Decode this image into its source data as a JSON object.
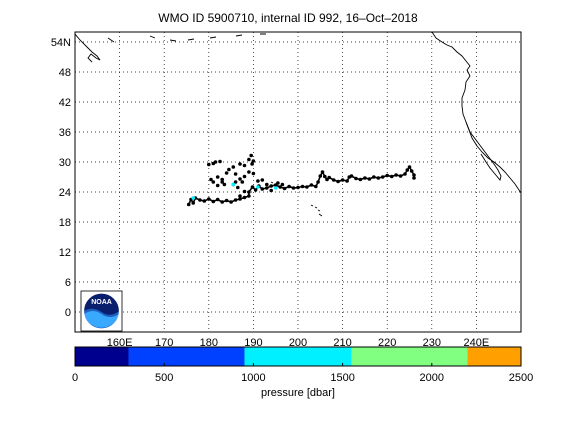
{
  "title": "WMO ID 5900710, internal ID 992, 16–Oct–2018",
  "map": {
    "lon_range": [
      150,
      250
    ],
    "lat_range": [
      -4,
      56
    ],
    "lat_ticks": [
      {
        "v": 54,
        "label": "54N"
      },
      {
        "v": 48,
        "label": "48"
      },
      {
        "v": 42,
        "label": "42"
      },
      {
        "v": 36,
        "label": "36"
      },
      {
        "v": 30,
        "label": "30"
      },
      {
        "v": 24,
        "label": "24"
      },
      {
        "v": 18,
        "label": "18"
      },
      {
        "v": 12,
        "label": "12"
      },
      {
        "v": 6,
        "label": "6"
      },
      {
        "v": 0,
        "label": "0"
      }
    ],
    "lon_ticks": [
      {
        "v": 160,
        "label": "160E"
      },
      {
        "v": 170,
        "label": "170"
      },
      {
        "v": 180,
        "label": "180"
      },
      {
        "v": 190,
        "label": "190"
      },
      {
        "v": 200,
        "label": "200"
      },
      {
        "v": 210,
        "label": "210"
      },
      {
        "v": 220,
        "label": "220"
      },
      {
        "v": 230,
        "label": "230"
      },
      {
        "v": 240,
        "label": "240E"
      }
    ],
    "grid": true,
    "float_color": "#000000",
    "logo_text": "NOAA"
  },
  "colorbar": {
    "label": "pressure [dbar]",
    "ticks": [
      {
        "v": 0,
        "label": "0"
      },
      {
        "v": 500,
        "label": "500"
      },
      {
        "v": 1000,
        "label": "1000"
      },
      {
        "v": 1500,
        "label": "1500"
      },
      {
        "v": 2000,
        "label": "2000"
      },
      {
        "v": 2500,
        "label": "2500"
      }
    ],
    "segments": [
      {
        "from": 0,
        "to": 300,
        "color": "#00008f"
      },
      {
        "from": 300,
        "to": 950,
        "color": "#0040ff"
      },
      {
        "from": 950,
        "to": 1550,
        "color": "#00f0ff"
      },
      {
        "from": 1550,
        "to": 2200,
        "color": "#80ff80"
      },
      {
        "from": 2200,
        "to": 2500,
        "color": "#ffa000"
      }
    ]
  },
  "chart_data": {
    "type": "scatter",
    "title": "WMO ID 5900710, internal ID 992, 16–Oct–2018",
    "xlim": [
      150,
      250
    ],
    "ylim": [
      -4,
      56
    ],
    "track": [
      [
        175.5,
        21.5
      ],
      [
        176,
        22.5
      ],
      [
        176.5,
        21.8
      ],
      [
        177,
        22.8
      ],
      [
        178,
        22.4
      ],
      [
        179,
        22.2
      ],
      [
        180,
        22.6
      ],
      [
        181,
        22.1
      ],
      [
        182,
        22.5
      ],
      [
        183,
        22.0
      ],
      [
        184,
        22.3
      ],
      [
        185,
        22.0
      ],
      [
        186,
        22.4
      ],
      [
        187,
        22.6
      ],
      [
        188,
        22.9
      ],
      [
        189,
        23.2
      ],
      [
        189,
        24.0
      ],
      [
        189.8,
        25.0
      ],
      [
        190.5,
        24.4
      ],
      [
        191.2,
        25.2
      ],
      [
        192,
        24.6
      ],
      [
        193,
        24.8
      ],
      [
        194,
        25.2
      ],
      [
        195,
        25.4
      ],
      [
        196,
        25.0
      ],
      [
        197,
        24.7
      ],
      [
        198,
        25.1
      ],
      [
        199,
        24.8
      ],
      [
        200,
        24.9
      ],
      [
        201,
        25.1
      ],
      [
        202,
        25.0
      ],
      [
        203,
        25.4
      ],
      [
        204,
        25.1
      ],
      [
        204.5,
        26.0
      ],
      [
        205,
        27.2
      ],
      [
        205.5,
        28.0
      ],
      [
        206,
        27.1
      ],
      [
        206.5,
        26.5
      ],
      [
        207,
        26.9
      ],
      [
        208,
        26.4
      ],
      [
        209,
        26.1
      ],
      [
        210,
        26.4
      ],
      [
        211,
        26.2
      ],
      [
        211.5,
        27.0
      ],
      [
        212,
        27.2
      ],
      [
        213,
        26.7
      ],
      [
        214,
        26.5
      ],
      [
        215,
        26.8
      ],
      [
        216,
        26.6
      ],
      [
        217,
        27.0
      ],
      [
        218,
        26.8
      ],
      [
        219,
        27.0
      ],
      [
        220,
        27.3
      ],
      [
        221,
        27.1
      ],
      [
        222,
        27.4
      ],
      [
        223,
        27.2
      ],
      [
        224,
        27.6
      ],
      [
        224.5,
        28.4
      ],
      [
        225,
        29.0
      ],
      [
        225.5,
        28.2
      ],
      [
        226,
        27.4
      ],
      [
        226,
        26.8
      ],
      [
        182,
        27.0
      ],
      [
        183,
        26.5
      ],
      [
        184,
        27.8
      ],
      [
        184.5,
        28.5
      ],
      [
        185.5,
        29.0
      ],
      [
        186,
        27.6
      ],
      [
        187,
        29.6
      ],
      [
        188,
        29.3
      ],
      [
        189,
        30.5
      ],
      [
        189.5,
        31.3
      ],
      [
        190,
        30.2
      ],
      [
        189.7,
        29.6
      ],
      [
        180,
        29.5
      ],
      [
        181,
        29.7
      ],
      [
        181.5,
        30.0
      ],
      [
        182.5,
        30.1
      ],
      [
        180.5,
        26.5
      ],
      [
        181,
        26.0
      ],
      [
        182,
        25.3
      ],
      [
        183,
        26.0
      ],
      [
        183.5,
        25.5
      ],
      [
        186,
        26.0
      ],
      [
        187,
        26.6
      ],
      [
        188,
        27.1
      ],
      [
        187.5,
        26.0
      ],
      [
        185.5,
        25.5
      ],
      [
        186.5,
        24.9
      ],
      [
        188,
        24.1
      ],
      [
        187,
        23.2
      ],
      [
        189,
        28.0
      ],
      [
        190,
        27.7
      ],
      [
        191,
        26.2
      ],
      [
        192,
        26.4
      ],
      [
        193,
        25.5
      ],
      [
        194,
        24.3
      ],
      [
        195.5,
        25.8
      ],
      [
        196.5,
        25.5
      ]
    ],
    "colored_points": [
      {
        "lon": 176.5,
        "lat": 22.8,
        "pressure": 1000
      },
      {
        "lon": 185.5,
        "lat": 25.5,
        "pressure": 1300
      },
      {
        "lon": 191.0,
        "lat": 25.0,
        "pressure": 1200
      },
      {
        "lon": 195.0,
        "lat": 24.8,
        "pressure": 1000
      }
    ]
  }
}
